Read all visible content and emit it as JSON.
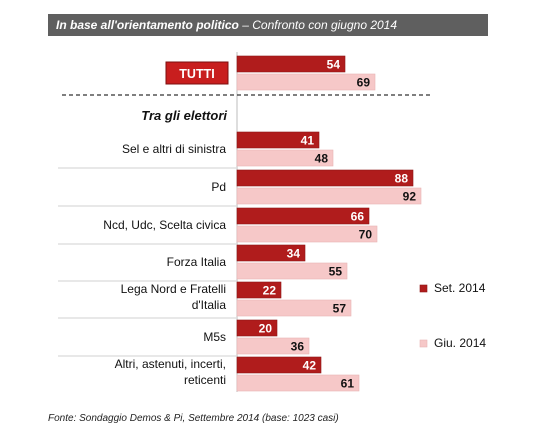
{
  "header": {
    "title": "In base all'orientamento politico",
    "subtitle": "– Confronto con giugno 2014"
  },
  "footer": {
    "source": "Fonte: Sondaggio Demos & Pi, Settembre 2014 (base: 1023 casi)"
  },
  "colors": {
    "set_2014": "#b01c1c",
    "giu_2014": "#f6c8c8",
    "tutti_button": "#c81e1e",
    "header_bg": "#5f5f5f"
  },
  "chart_data": {
    "type": "bar",
    "orientation": "horizontal",
    "total": {
      "label": "TUTTI",
      "values": [
        54,
        69
      ]
    },
    "group_heading": "Tra gli elettori",
    "categories": [
      "Sel e altri di sinistra",
      "Pd",
      "Ncd, Udc, Scelta civica",
      "Forza Italia",
      "Lega Nord e Fratelli d'Italia",
      "M5s",
      "Altri, astenuti, incerti, reticenti"
    ],
    "series": [
      {
        "name": "Set. 2014",
        "values": [
          41,
          88,
          66,
          34,
          22,
          20,
          42
        ]
      },
      {
        "name": "Giu. 2014",
        "values": [
          48,
          92,
          70,
          55,
          57,
          36,
          61
        ]
      }
    ],
    "legend_placement": "right",
    "grid": false,
    "xlim": [
      0,
      100
    ]
  }
}
